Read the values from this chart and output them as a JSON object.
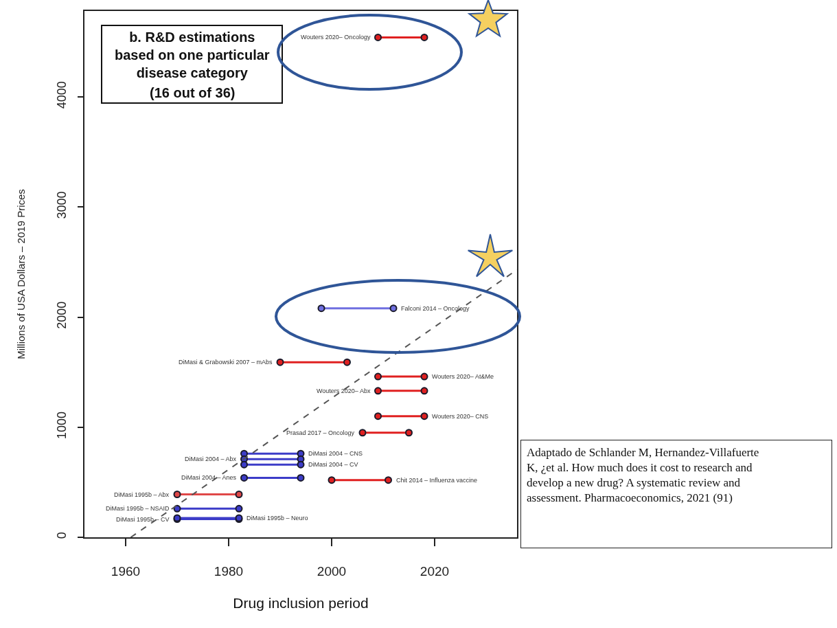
{
  "chart_data": {
    "type": "line",
    "title": "b. R&D estimations based on one particular disease category",
    "subtitle": "(16 out of 36)",
    "xlabel": "Drug inclusion period",
    "ylabel": "Millions of USA Dollars – 2019 Prices",
    "xlim": [
      1952,
      2036
    ],
    "xticks": [
      1960,
      1980,
      2000,
      2020
    ],
    "ylim": [
      0,
      4780
    ],
    "yticks": [
      0,
      1000,
      2000,
      3000,
      4000
    ],
    "marker": "circle",
    "line_style": "solid",
    "series": [
      {
        "name": "Wouters 2020– Oncology",
        "color": "#e02020",
        "x": [
          2009,
          2018
        ],
        "values": [
          4540,
          4540
        ]
      },
      {
        "name": "Falconi 2014 – Oncology",
        "color": "#6f6fe0",
        "x": [
          2012,
          1998
        ],
        "values": [
          2080,
          2080
        ]
      },
      {
        "name": "DiMasi & Grabowski 2007 – mAbs",
        "color": "#e02020",
        "x": [
          1990,
          2003
        ],
        "values": [
          1590,
          1590
        ]
      },
      {
        "name": "Wouters 2020– At&Me",
        "color": "#e02020",
        "x": [
          2018,
          2009
        ],
        "values": [
          1460,
          1460
        ]
      },
      {
        "name": "Wouters 2020– Abx",
        "color": "#e02020",
        "x": [
          2009,
          2018
        ],
        "values": [
          1330,
          1330
        ]
      },
      {
        "name": "Wouters 2020– CNS",
        "color": "#e02020",
        "x": [
          2018,
          2009
        ],
        "values": [
          1100,
          1100
        ]
      },
      {
        "name": "Prasad 2017 – Oncology",
        "color": "#e02020",
        "x": [
          2006,
          2015
        ],
        "values": [
          950,
          950
        ]
      },
      {
        "name": "DiMasi 2004 – CNS",
        "color": "#3c3cc8",
        "x": [
          1994,
          1983
        ],
        "values": [
          760,
          760
        ]
      },
      {
        "name": "DiMasi 2004 – Abx",
        "color": "#3c3cc8",
        "x": [
          1983,
          1994
        ],
        "values": [
          710,
          710
        ]
      },
      {
        "name": "DiMasi 2004 – CV",
        "color": "#3c3cc8",
        "x": [
          1994,
          1983
        ],
        "values": [
          660,
          660
        ]
      },
      {
        "name": "DiMasi 2004 – Anes",
        "color": "#3c3cc8",
        "x": [
          1983,
          1994
        ],
        "values": [
          540,
          540
        ]
      },
      {
        "name": "Chit 2014 – Influenza vaccine",
        "color": "#e02020",
        "x": [
          2011,
          2000
        ],
        "values": [
          520,
          520
        ]
      },
      {
        "name": "DiMasi 1995b – Abx",
        "color": "#e04848",
        "x": [
          1970,
          1982
        ],
        "values": [
          390,
          390
        ]
      },
      {
        "name": "DiMasi 1995b – NSAID",
        "color": "#3c3cc8",
        "x": [
          1970,
          1982
        ],
        "values": [
          260,
          260
        ]
      },
      {
        "name": "DiMasi 1995b – CV",
        "color": "#3c3cc8",
        "x": [
          1970,
          1982
        ],
        "values": [
          165,
          165
        ]
      },
      {
        "name": "DiMasi 1995b – Neuro",
        "color": "#3c3cc8",
        "x": [
          1982,
          1970
        ],
        "values": [
          175,
          175
        ]
      },
      {
        "type": "line",
        "color": "#555555",
        "line_style": "dashed",
        "marker": "none",
        "x": [
          1961,
          2036
        ],
        "values": [
          0,
          2430
        ]
      }
    ],
    "annotations": [
      "Adaptado de Schlander M, Hernandez-Villafuerte K, ¿et al. How much does it cost to research and develop a new drug? A systematic review and assessment. Pharmacoeconomics, 2021 (91)"
    ]
  }
}
